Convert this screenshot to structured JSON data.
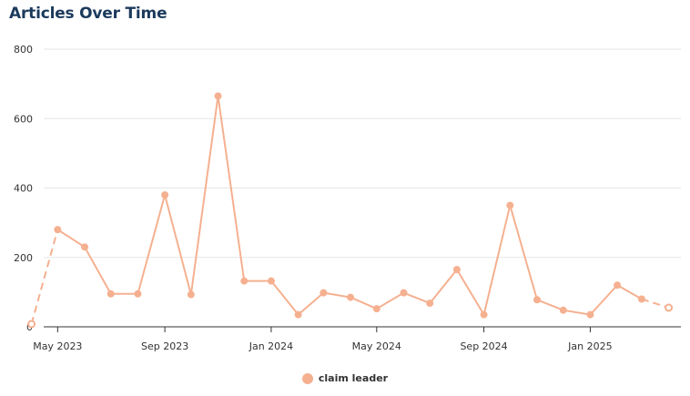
{
  "chart_data": {
    "type": "line",
    "title": "Articles Over Time",
    "xlabel": "",
    "ylabel": "",
    "ylim": [
      0,
      800
    ],
    "yticks": [
      0,
      200,
      400,
      600,
      800
    ],
    "xlim": [
      "2023-04-15",
      "2025-04-15"
    ],
    "xticks": [
      {
        "date": "2023-05-01",
        "label": "May 2023"
      },
      {
        "date": "2023-09-01",
        "label": "Sep 2023"
      },
      {
        "date": "2024-01-01",
        "label": "Jan 2024"
      },
      {
        "date": "2024-05-01",
        "label": "May 2024"
      },
      {
        "date": "2024-09-01",
        "label": "Sep 2024"
      },
      {
        "date": "2025-01-01",
        "label": "Jan 2025"
      }
    ],
    "grid": true,
    "legend_position": "bottom",
    "series": [
      {
        "name": "claim leader",
        "color": "#f5b090",
        "dates": [
          "2023-04-01",
          "2023-05-01",
          "2023-06-01",
          "2023-07-01",
          "2023-08-01",
          "2023-09-01",
          "2023-10-01",
          "2023-11-01",
          "2023-12-01",
          "2024-01-01",
          "2024-02-01",
          "2024-03-01",
          "2024-04-01",
          "2024-05-01",
          "2024-06-01",
          "2024-07-01",
          "2024-08-01",
          "2024-09-01",
          "2024-10-01",
          "2024-11-01",
          "2024-12-01",
          "2025-01-01",
          "2025-02-01",
          "2025-03-01",
          "2025-04-01"
        ],
        "values": [
          8,
          280,
          230,
          95,
          95,
          380,
          93,
          665,
          132,
          132,
          35,
          98,
          85,
          52,
          98,
          68,
          165,
          35,
          350,
          78,
          48,
          35,
          120,
          80,
          55
        ],
        "partial_first": true,
        "partial_last": true
      }
    ]
  }
}
